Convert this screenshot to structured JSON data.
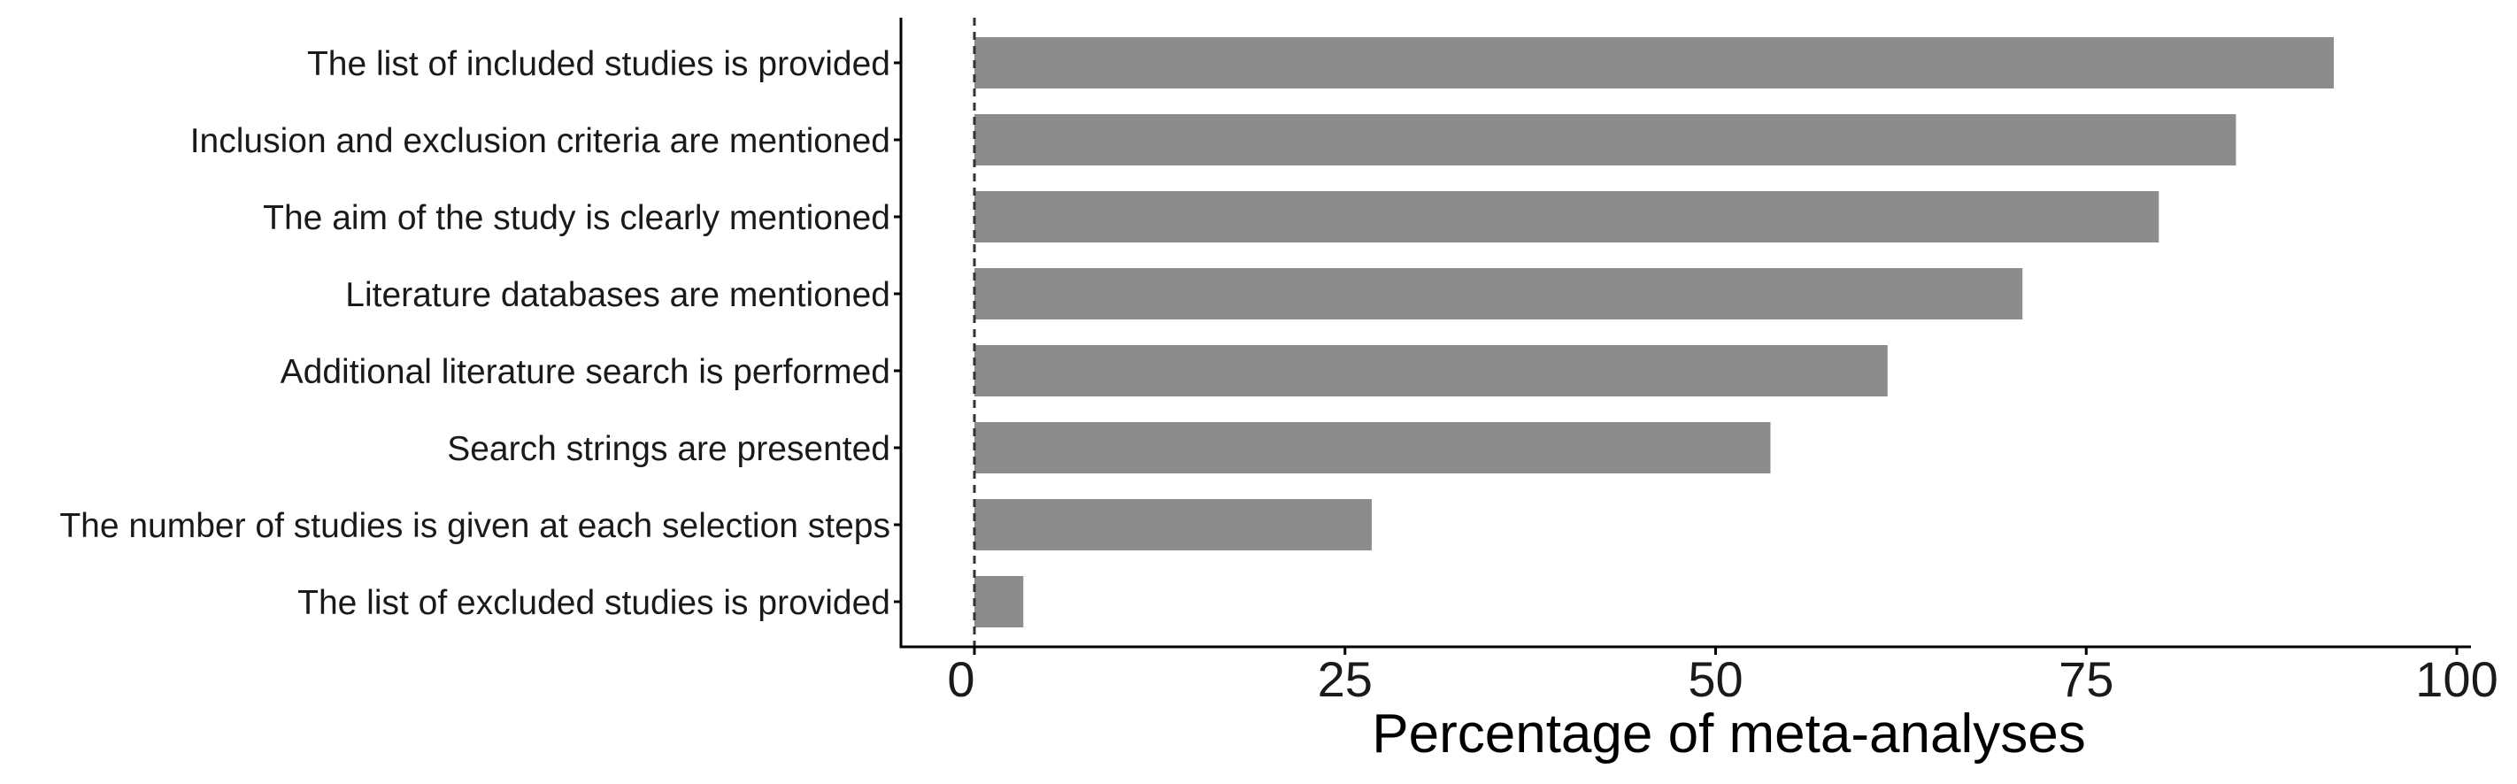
{
  "chart_data": {
    "type": "bar",
    "orientation": "horizontal",
    "categories": [
      "The list of included studies is provided",
      "Inclusion and exclusion criteria are mentioned",
      "The aim of the study is clearly mentioned",
      "Literature databases are mentioned",
      "Additional literature search is performed",
      "Search strings are presented",
      "The number of studies is given at each selection steps",
      "The list of excluded studies is provided"
    ],
    "values": [
      91.7,
      85.1,
      79.9,
      70.7,
      61.6,
      53.7,
      26.8,
      3.3
    ],
    "xlabel": "Percentage of meta-analyses",
    "ylabel": "",
    "xlim": [
      0,
      100
    ],
    "xticks": [
      "0",
      "25",
      "50",
      "75",
      "100"
    ],
    "reference_line": 0,
    "grid": false,
    "bar_color": "#8c8c8c"
  }
}
